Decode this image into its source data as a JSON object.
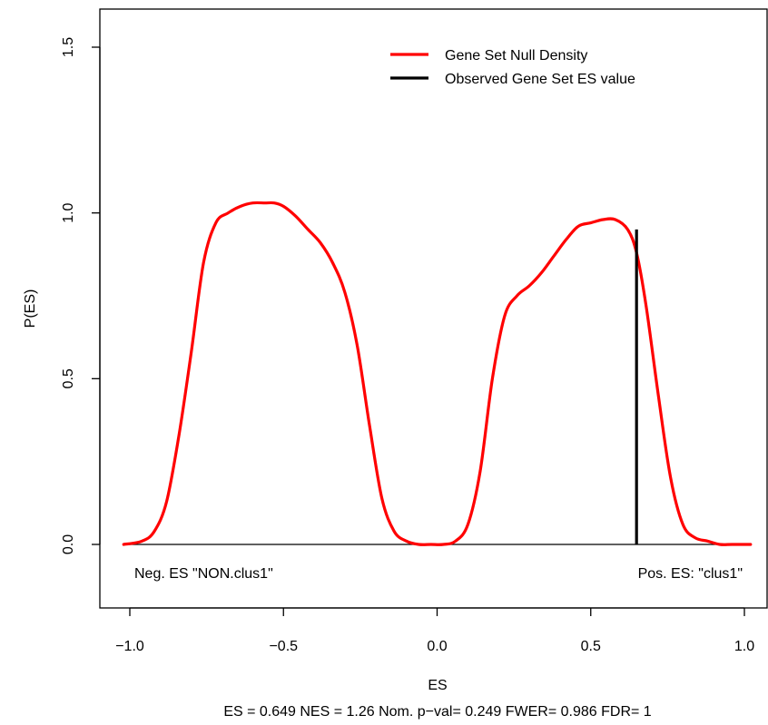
{
  "chart_data": {
    "type": "line",
    "title": "",
    "xlabel": "ES",
    "ylabel": "P(ES)",
    "subtitle": "ES = 0.649  NES = 1.26 Nom. p−val= 0.249 FWER= 0.986 FDR= 1",
    "xlim": [
      -1.1,
      1.08
    ],
    "ylim": [
      -0.2,
      1.6
    ],
    "x_ticks": [
      -1.0,
      -0.5,
      0.0,
      0.5,
      1.0
    ],
    "x_tick_labels": [
      "−1.0",
      "−0.5",
      "0.0",
      "0.5",
      "1.0"
    ],
    "y_ticks": [
      0.0,
      0.5,
      1.0,
      1.5
    ],
    "y_tick_labels": [
      "0.0",
      "0.5",
      "1.0",
      "1.5"
    ],
    "grid": false,
    "legend": {
      "placement": "top-right",
      "entries": [
        {
          "label": "Gene Set Null Density",
          "color": "#ff0000"
        },
        {
          "label": "Observed Gene Set ES value",
          "color": "#000000"
        }
      ]
    },
    "annotations": {
      "neg_label": "Neg. ES \"NON.clus1\"",
      "pos_label": "Pos. ES: \"clus1\""
    },
    "baseline_y": 0.0,
    "series": [
      {
        "name": "Gene Set Null Density",
        "color": "#ff0000",
        "x": [
          -1.02,
          -0.96,
          -0.92,
          -0.88,
          -0.84,
          -0.8,
          -0.76,
          -0.72,
          -0.68,
          -0.64,
          -0.6,
          -0.56,
          -0.53,
          -0.5,
          -0.46,
          -0.42,
          -0.38,
          -0.34,
          -0.3,
          -0.26,
          -0.22,
          -0.18,
          -0.14,
          -0.1,
          -0.06,
          -0.02,
          0.02,
          0.06,
          0.1,
          0.14,
          0.18,
          0.22,
          0.26,
          0.3,
          0.34,
          0.38,
          0.42,
          0.46,
          0.5,
          0.54,
          0.58,
          0.62,
          0.649,
          0.68,
          0.72,
          0.76,
          0.8,
          0.84,
          0.88,
          0.92,
          0.96,
          1.02
        ],
        "y": [
          0.0,
          0.01,
          0.04,
          0.13,
          0.33,
          0.58,
          0.85,
          0.97,
          1.0,
          1.02,
          1.03,
          1.03,
          1.03,
          1.02,
          0.99,
          0.95,
          0.91,
          0.85,
          0.76,
          0.6,
          0.36,
          0.14,
          0.04,
          0.01,
          0.0,
          0.0,
          0.0,
          0.01,
          0.06,
          0.22,
          0.5,
          0.69,
          0.75,
          0.78,
          0.82,
          0.87,
          0.92,
          0.96,
          0.97,
          0.98,
          0.98,
          0.95,
          0.88,
          0.72,
          0.45,
          0.2,
          0.06,
          0.02,
          0.01,
          0.0,
          0.0,
          0.0
        ]
      },
      {
        "name": "Observed Gene Set ES value",
        "color": "#000000",
        "x": [
          0.649,
          0.649
        ],
        "y": [
          0.0,
          0.95
        ]
      }
    ]
  }
}
